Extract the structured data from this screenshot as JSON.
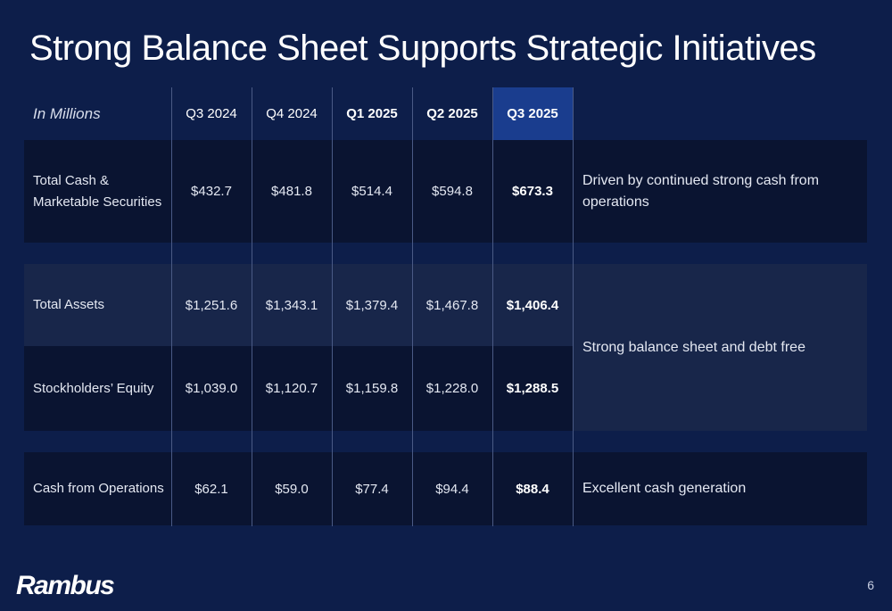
{
  "slide": {
    "title": "Strong Balance Sheet Supports Strategic Initiatives",
    "page_number": "6",
    "logo_text": "Rambus"
  },
  "table": {
    "unit_label": "In Millions",
    "columns": [
      "Q3 2024",
      "Q4 2024",
      "Q1 2025",
      "Q2 2025",
      "Q3 2025"
    ],
    "bold_columns": [
      "Q1 2025",
      "Q2 2025",
      "Q3 2025"
    ],
    "highlight_column": "Q3 2025",
    "rows": [
      {
        "label": "Total Cash & Marketable Securities",
        "values": [
          "$432.7",
          "$481.8",
          "$514.4",
          "$594.8",
          "$673.3"
        ]
      },
      {
        "label": "Total Assets",
        "values": [
          "$1,251.6",
          "$1,343.1",
          "$1,379.4",
          "$1,467.8",
          "$1,406.4"
        ]
      },
      {
        "label": "Stockholders’ Equity",
        "values": [
          "$1,039.0",
          "$1,120.7",
          "$1,159.8",
          "$1,228.0",
          "$1,288.5"
        ]
      },
      {
        "label": "Cash from Operations",
        "values": [
          "$62.1",
          "$59.0",
          "$77.4",
          "$94.4",
          "$88.4"
        ]
      }
    ],
    "notes": [
      "Driven by continued strong cash from operations",
      "Strong balance sheet and debt free",
      "Excellent cash generation"
    ]
  },
  "colors": {
    "background": "#0d1e4a",
    "highlight_header": "#1a3d8e",
    "row_dark": "#0a1431",
    "row_mid": "#18264a"
  }
}
